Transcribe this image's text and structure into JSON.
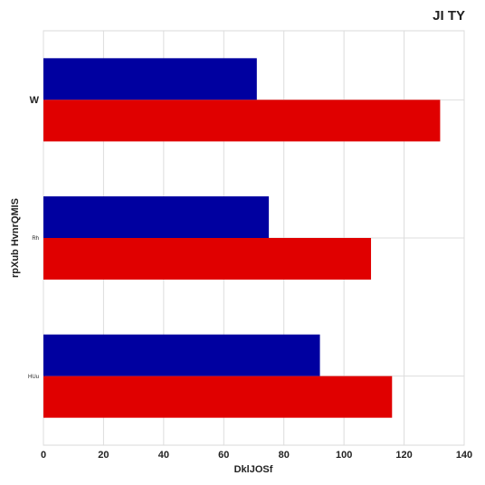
{
  "chart_data": {
    "type": "bar",
    "orientation": "horizontal",
    "title": "JI TY",
    "xlabel": "DklJOSf",
    "ylabel": "rpXub HvnrQMIS",
    "categories": [
      "W",
      "Rh",
      "HUu"
    ],
    "series": [
      {
        "values": [
          71,
          75,
          92
        ],
        "color": "#0000a0"
      },
      {
        "values": [
          132,
          109,
          116
        ],
        "color": "#e00000"
      }
    ],
    "xlim": [
      0,
      140
    ],
    "xticks": [
      0,
      20,
      40,
      60,
      80,
      100,
      120,
      140
    ],
    "grid": true,
    "legend": "none"
  }
}
